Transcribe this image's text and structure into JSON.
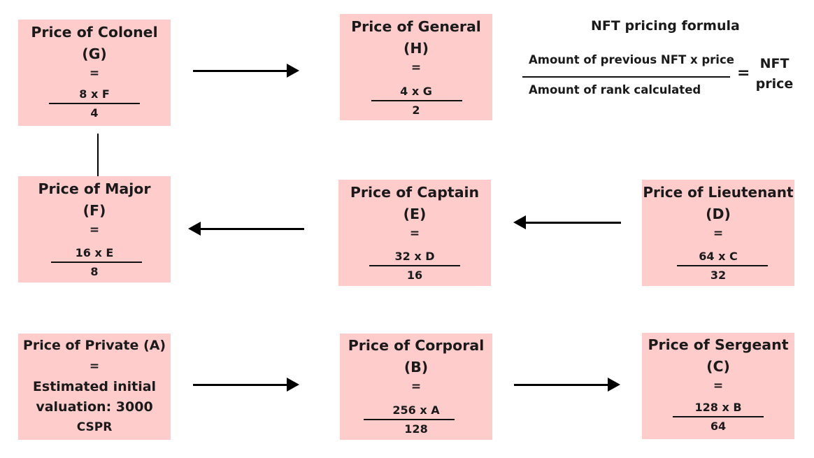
{
  "boxes": {
    "colonel": {
      "title1": "Price of Colonel",
      "title2": "(G)",
      "eq": "=",
      "num": "8 x F",
      "den": "4"
    },
    "general": {
      "title1": "Price of General",
      "title2": "(H)",
      "eq": "=",
      "num": "4 x G",
      "den": "2"
    },
    "major": {
      "title1": "Price of Major",
      "title2": "(F)",
      "eq": "=",
      "num": "16 x E",
      "den": "8"
    },
    "captain": {
      "title1": "Price of Captain",
      "title2": "(E)",
      "eq": "=",
      "num": "32 x D",
      "den": "16"
    },
    "lieutenant": {
      "title1": "Price of Lieutenant",
      "title2": "(D)",
      "eq": "=",
      "num": "64 x C",
      "den": "32"
    },
    "private": {
      "title1": "Price of Private (A)",
      "eq": "=",
      "line1": "Estimated initial",
      "line2": "valuation: 3000",
      "line3": "CSPR"
    },
    "corporal": {
      "title1": "Price of Corporal",
      "title2": "(B)",
      "eq": "=",
      "num": "256 x A",
      "den": "128"
    },
    "sergeant": {
      "title1": "Price of Sergeant",
      "title2": "(C)",
      "eq": "=",
      "num": "128 x B",
      "den": "64"
    }
  },
  "formula": {
    "title": "NFT pricing formula",
    "numerator": "Amount of previous NFT x price",
    "denominator": "Amount of rank calculated",
    "equals": "=",
    "result_line1": "NFT",
    "result_line2": "price"
  }
}
